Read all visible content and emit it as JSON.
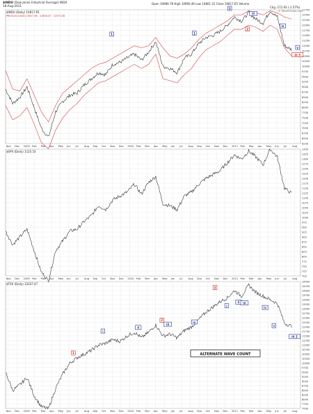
{
  "header": {
    "symbol": "$INDU",
    "name": "(Dow Jones Industrial Average) INDX",
    "date": "18-Aug-2011",
    "open_label": "Open",
    "open": "10989.78",
    "high_label": "High",
    "high": "10990.46",
    "low_label": "Low",
    "low": "10801.41",
    "close_label": "Close",
    "close": "10817.65",
    "volume_label": "Volume",
    "chg_label": "Chg",
    "chg": "-172.93 (-1.57%)",
    "source": "© StockCharts.com"
  },
  "chart_data": [
    {
      "type": "line",
      "title": "$INDU (Daily) 10817.65",
      "subtitle": "PRICE(20,4.625) 10817.65 - 12618.47 - 12373.38",
      "ylim": [
        6250,
        12750
      ],
      "yticks": [
        6250,
        6500,
        6750,
        7000,
        7250,
        7500,
        7750,
        8000,
        8250,
        8500,
        8750,
        9000,
        9250,
        9500,
        9750,
        10000,
        10250,
        10500,
        10750,
        11000,
        11250,
        11500,
        11750,
        12000,
        12250,
        12500,
        12750
      ],
      "xlabels": [
        "Nov",
        "Dec",
        "2009",
        "Feb",
        "Mar",
        "Apr",
        "May",
        "Jun",
        "Jul",
        "Aug",
        "Sep",
        "Oct",
        "Nov",
        "Dec",
        "2010",
        "Feb",
        "Mar",
        "Apr",
        "May",
        "Jun",
        "Jul",
        "Aug",
        "Sep",
        "Oct",
        "Nov",
        "Dec",
        "2011",
        "Feb",
        "Mar",
        "Apr",
        "May",
        "Jun",
        "Jul",
        "Aug"
      ],
      "series": [
        {
          "values": [
            8900,
            8200,
            8500,
            9000,
            8000,
            7000,
            6547,
            7800,
            8300,
            8600,
            8700,
            9100,
            9400,
            9700,
            9600,
            10100,
            10200,
            10400,
            10600,
            10300,
            10700,
            11200,
            10000,
            9900,
            9700,
            10400,
            10600,
            11100,
            11400,
            11500,
            11700,
            12000,
            12400,
            12200,
            12600,
            12300,
            12100,
            12700,
            12400,
            11000,
            10817
          ]
        },
        {
          "values": [
            9800,
            8900,
            8800,
            9400,
            8600,
            7800,
            7300,
            8100,
            8700,
            9000,
            9300,
            9600,
            9900,
            10100,
            10200,
            10400,
            10600,
            10800,
            11000,
            10900,
            11000,
            11400,
            10900,
            10500,
            10400,
            10600,
            10900,
            11300,
            11600,
            11800,
            12000,
            12200,
            12500,
            12500,
            12700,
            12600,
            12500,
            12700,
            12600,
            12400,
            12300
          ]
        },
        {
          "values": [
            8100,
            7400,
            7600,
            8000,
            7200,
            6300,
            6000,
            6900,
            7500,
            7900,
            8200,
            8600,
            8900,
            9200,
            9300,
            9500,
            9700,
            9900,
            10100,
            9900,
            10100,
            10600,
            9400,
            9300,
            9200,
            9600,
            9900,
            10400,
            10800,
            11000,
            11200,
            11500,
            11800,
            11800,
            12000,
            11900,
            11700,
            12000,
            11800,
            10900,
            10500
          ]
        }
      ],
      "annotations": [
        {
          "label": "1",
          "color": "#223388",
          "x": 18,
          "y": 11550
        },
        {
          "label": "1",
          "color": "#223388",
          "x": 32,
          "y": 11600
        },
        {
          "label": "2",
          "color": "#223388",
          "x": 38,
          "y": 12800
        },
        {
          "label": "2",
          "color": "#cc2222",
          "x": 41,
          "y": 11800
        },
        {
          "label": "iii",
          "color": "#223388",
          "x": 42,
          "y": 12550
        },
        {
          "label": "iv",
          "color": "#223388",
          "x": 47,
          "y": 11950
        },
        {
          "label": "v",
          "color": "#223388",
          "x": 49.5,
          "y": 10900
        },
        {
          "label": "iii 3",
          "color": "#cc2222",
          "x": 49.5,
          "y": 10550
        }
      ]
    },
    {
      "type": "line",
      "title": "$SPX (Daily) 1123.53",
      "ylim": [
        700,
        1350
      ],
      "yticks": [
        700,
        725,
        750,
        775,
        800,
        825,
        850,
        875,
        900,
        925,
        950,
        975,
        1000,
        1025,
        1050,
        1075,
        1100,
        1125,
        1150,
        1175,
        1200,
        1225,
        1250,
        1275,
        1300,
        1325,
        1350
      ],
      "series": [
        {
          "values": [
            930,
            860,
            900,
            940,
            830,
            720,
            676,
            830,
            880,
            930,
            940,
            980,
            1010,
            1060,
            1040,
            1090,
            1110,
            1130,
            1170,
            1120,
            1180,
            1210,
            1070,
            1060,
            1040,
            1110,
            1130,
            1170,
            1200,
            1220,
            1240,
            1280,
            1320,
            1300,
            1340,
            1310,
            1270,
            1350,
            1310,
            1150,
            1123
          ]
        }
      ],
      "annotations": []
    },
    {
      "type": "line",
      "title": "$TSX (Daily) 12037.47",
      "ylim": [
        7500,
        14500
      ],
      "yticks": [
        7500,
        7750,
        8000,
        8250,
        8500,
        8750,
        9000,
        9250,
        9500,
        9750,
        10000,
        10250,
        10500,
        10750,
        11000,
        11250,
        11500,
        11750,
        12000,
        12250,
        12500,
        12750,
        13000,
        13250,
        13500,
        13750,
        14000,
        14250,
        14500
      ],
      "series": [
        {
          "values": [
            9500,
            8500,
            8800,
            9200,
            8200,
            7600,
            7480,
            8600,
            9400,
            10000,
            10300,
            10500,
            10700,
            11000,
            11100,
            11300,
            11200,
            11500,
            11700,
            11400,
            11700,
            12100,
            11500,
            11600,
            11400,
            11800,
            12000,
            12400,
            12800,
            13100,
            13400,
            13600,
            14000,
            13700,
            14300,
            13900,
            13700,
            13500,
            13300,
            12200,
            12037
          ]
        }
      ],
      "annotations": [
        {
          "label": "1",
          "color": "#cc2222",
          "x": 11.5,
          "y": 10550
        },
        {
          "label": "i",
          "color": "#223388",
          "x": 16.5,
          "y": 11750
        },
        {
          "label": "ii",
          "color": "#223388",
          "x": 22.5,
          "y": 11950
        },
        {
          "label": "2",
          "color": "#cc2222",
          "x": 26.5,
          "y": 12350
        },
        {
          "label": "iii",
          "color": "#223388",
          "x": 27.5,
          "y": 12130
        },
        {
          "label": "iv",
          "color": "#223388",
          "x": 32,
          "y": 12250
        },
        {
          "label": "3",
          "color": "#cc2222",
          "x": 35.5,
          "y": 14150
        },
        {
          "label": "i",
          "color": "#223388",
          "x": 37.5,
          "y": 13150
        },
        {
          "label": "ii",
          "color": "#223388",
          "x": 39.5,
          "y": 13350
        },
        {
          "label": "iii",
          "color": "#223388",
          "x": 40.5,
          "y": 13300
        },
        {
          "label": "iv",
          "color": "#223388",
          "x": 44,
          "y": 13050
        },
        {
          "label": "v",
          "color": "#223388",
          "x": 45.5,
          "y": 12050
        },
        {
          "label": "iii 2",
          "color": "#223388",
          "x": 49,
          "y": 11450
        }
      ],
      "caption": "ALTERNATE WAVE COUNT"
    }
  ],
  "colors": {
    "price": "#222222",
    "envelope": "#cc3333",
    "grid": "#e3e3e3",
    "wave_blue": "#223388",
    "wave_red": "#cc2222"
  }
}
